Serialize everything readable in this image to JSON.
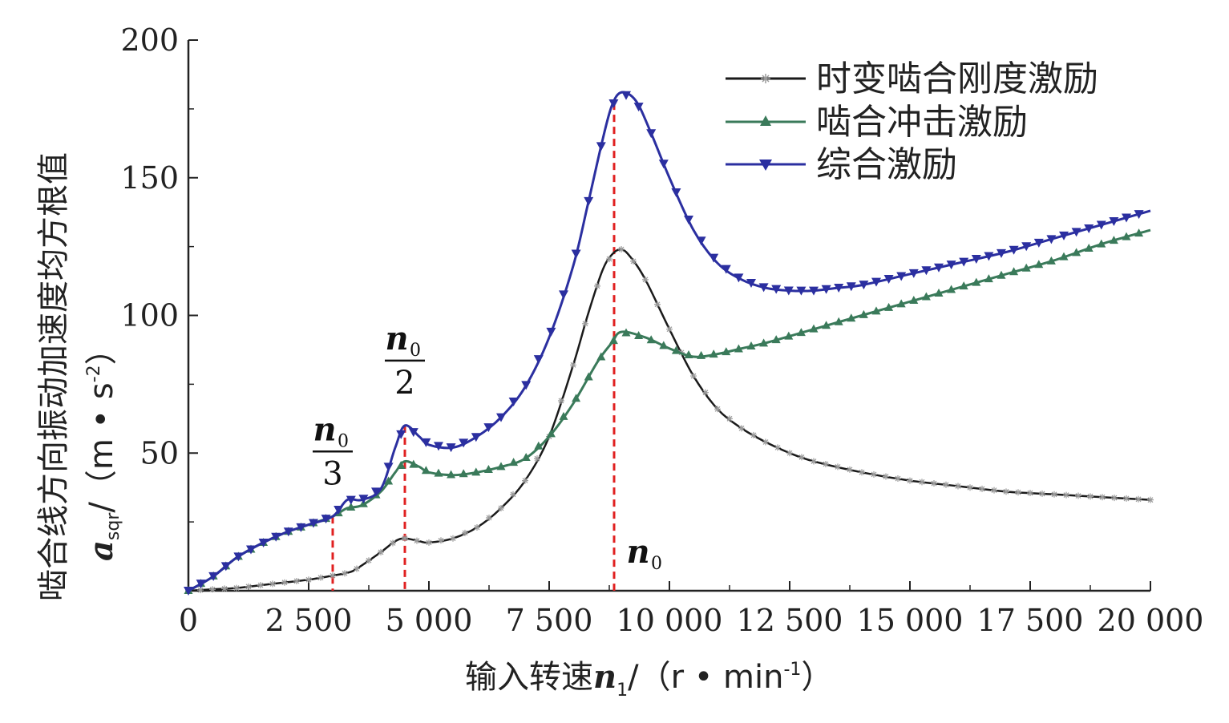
{
  "chart_data": {
    "type": "line",
    "x_unit_label": "输入转速",
    "x_symbol": "n",
    "x_symbol_sub": "1",
    "x_units": "/（r • min",
    "x_units_sup": "-1",
    "x_units_close": "）",
    "y_title": "啮合线方向振动加速度均方根值",
    "y_symbol": "a",
    "y_symbol_sub": "sqr",
    "y_units": "/（m • s",
    "y_units_sup": "-2",
    "y_units_close": "）",
    "xlim": [
      0,
      20000
    ],
    "ylim": [
      0,
      200
    ],
    "x_ticks": [
      0,
      2500,
      5000,
      7500,
      10000,
      12500,
      15000,
      17500,
      20000
    ],
    "x_tick_labels": [
      "0",
      "2 500",
      "5 000",
      "7 500",
      "10 000",
      "12 500",
      "15 000",
      "17 500",
      "20 000"
    ],
    "y_ticks": [
      50,
      100,
      150,
      200
    ],
    "y_tick_labels": [
      "50",
      "100",
      "150",
      "200"
    ],
    "legend_position": "top-right",
    "grid": false,
    "series": [
      {
        "name": "时变啮合刚度激励",
        "color": "#1a1a1a",
        "marker": "asterisk",
        "x": [
          0,
          500,
          1000,
          1500,
          2000,
          2500,
          3000,
          3300,
          3500,
          4000,
          4300,
          4500,
          4800,
          5000,
          5500,
          6000,
          6500,
          7000,
          7500,
          8000,
          8300,
          8600,
          8800,
          9000,
          9200,
          9500,
          10000,
          10500,
          11000,
          11500,
          12000,
          12500,
          13000,
          14000,
          15000,
          16000,
          17000,
          18000,
          19000,
          20000
        ],
        "values": [
          0,
          0.5,
          1,
          2,
          3,
          4,
          5.5,
          6.5,
          8,
          14,
          18,
          19,
          18,
          17.5,
          19,
          23,
          30,
          40,
          56,
          82,
          100,
          116,
          122,
          124,
          121,
          113,
          95,
          78,
          66,
          59,
          54,
          50,
          47,
          43,
          40,
          38,
          36,
          35,
          34,
          33
        ]
      },
      {
        "name": "啮合冲击激励",
        "color": "#3a7a5a",
        "marker": "triangle-up",
        "x": [
          0,
          500,
          1000,
          1500,
          2000,
          2500,
          3000,
          3300,
          3600,
          4000,
          4300,
          4500,
          4800,
          5000,
          5500,
          6000,
          6500,
          7000,
          7500,
          8000,
          8500,
          8800,
          9000,
          9500,
          10000,
          10500,
          11000,
          11500,
          12000,
          13000,
          14000,
          15000,
          16000,
          17000,
          18000,
          19000,
          20000
        ],
        "values": [
          0,
          5,
          12,
          17,
          21,
          24,
          27,
          30,
          31,
          36,
          43,
          47,
          45,
          43,
          42,
          43,
          45,
          48,
          56,
          68,
          83,
          90,
          94,
          92,
          88,
          85,
          86,
          88,
          90,
          95,
          100,
          105,
          110,
          115,
          120,
          126,
          131
        ]
      },
      {
        "name": "综合激励",
        "color": "#2b2fa0",
        "marker": "triangle-down",
        "x": [
          0,
          500,
          1000,
          1500,
          2000,
          2500,
          3000,
          3300,
          3600,
          4000,
          4300,
          4500,
          4800,
          5000,
          5500,
          6000,
          6500,
          7000,
          7500,
          8000,
          8300,
          8600,
          8800,
          9000,
          9300,
          9600,
          10000,
          10500,
          11000,
          11500,
          12000,
          12500,
          13000,
          13500,
          14000,
          15000,
          16000,
          17000,
          18000,
          19000,
          20000
        ],
        "values": [
          0,
          5,
          12,
          17,
          21,
          24,
          27,
          33,
          33,
          37,
          52,
          60,
          56,
          53,
          52,
          56,
          63,
          74,
          92,
          118,
          140,
          163,
          176,
          181,
          178,
          167,
          150,
          131,
          119,
          113,
          110,
          109,
          109,
          110,
          111,
          115,
          119,
          123,
          128,
          133,
          138
        ]
      }
    ],
    "markers": [
      {
        "x": 3000,
        "color": "#e02020",
        "label_top": "n",
        "label_sub": "0",
        "label_den": "3"
      },
      {
        "x": 4500,
        "color": "#e02020",
        "label_top": "n",
        "label_sub": "0",
        "label_den": "2"
      },
      {
        "x": 8850,
        "color": "#e02020",
        "label_top": "n",
        "label_sub": "0",
        "label_den": ""
      }
    ]
  }
}
